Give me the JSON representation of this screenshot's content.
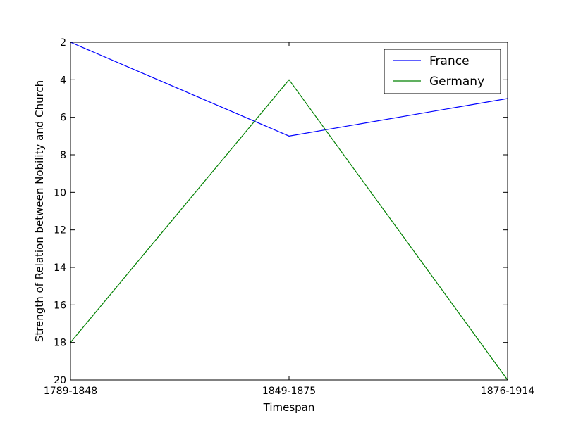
{
  "chart_data": {
    "type": "line",
    "title": "",
    "xlabel": "Timespan",
    "ylabel": "Strength of Relation between Nobility and Church",
    "categories": [
      "1789-1848",
      "1849-1875",
      "1876-1914"
    ],
    "series": [
      {
        "name": "France",
        "values": [
          2,
          7,
          5
        ],
        "color": "#0000ff"
      },
      {
        "name": "Germany",
        "values": [
          18,
          4,
          20
        ],
        "color": "#008000"
      }
    ],
    "ylim": [
      2,
      20
    ],
    "y_inverted": true,
    "yticks": [
      "2",
      "4",
      "6",
      "8",
      "10",
      "12",
      "14",
      "16",
      "18",
      "20"
    ],
    "grid": false,
    "legend_position": "top-right"
  }
}
